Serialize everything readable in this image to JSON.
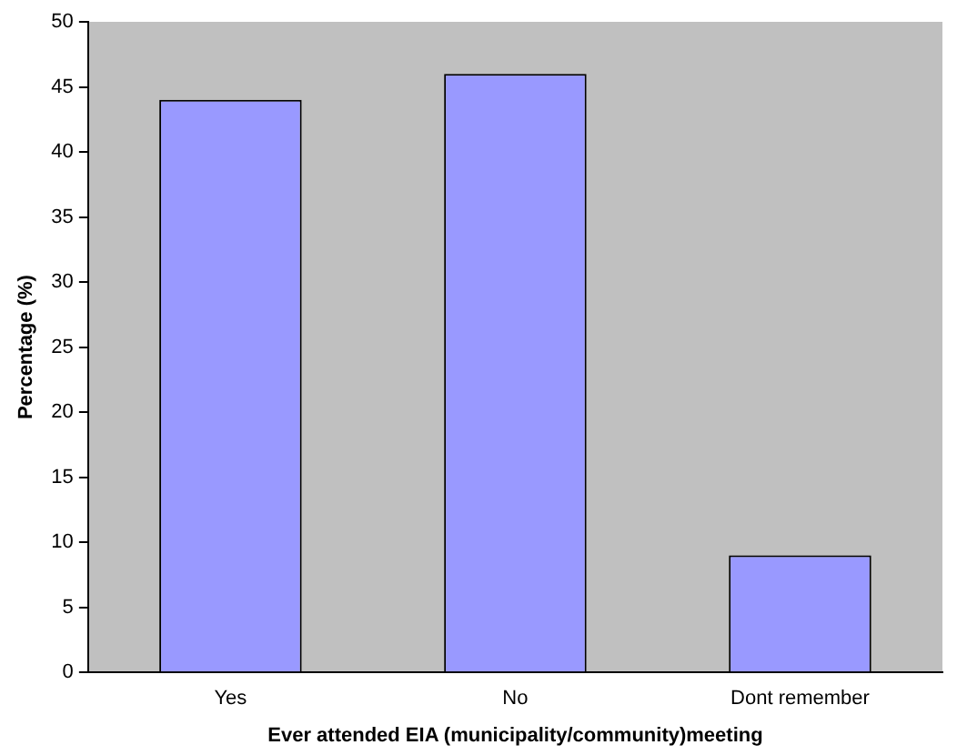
{
  "chart_data": {
    "type": "bar",
    "xlabel": "Ever attended EIA (municipality/community)meeting",
    "ylabel": "Percentage (%)",
    "categories": [
      "Yes",
      "No",
      "Dont remember"
    ],
    "values": [
      44,
      46,
      9
    ],
    "color": "#9999ff",
    "ylim": [
      0,
      50
    ],
    "yticks": [
      0,
      5,
      10,
      15,
      20,
      25,
      30,
      35,
      40,
      45,
      50
    ],
    "grid": false,
    "legend": false
  }
}
